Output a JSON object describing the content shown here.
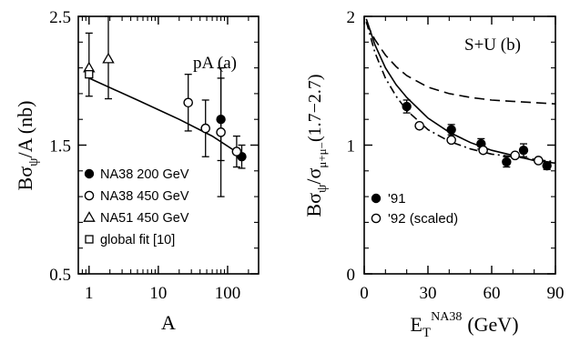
{
  "chart_data": [
    {
      "type": "scatter",
      "panel_label": "pA  (a)",
      "xlabel": "A",
      "ylabel_main": "Bσ",
      "ylabel_sub": "ψ",
      "ylabel_rest": "/A (nb)",
      "x_scale": "log",
      "xlim": [
        0.7,
        280
      ],
      "ylim": [
        0.5,
        2.5
      ],
      "x_ticks": [
        {
          "value": 1,
          "label": "1"
        },
        {
          "value": 10,
          "label": "10"
        },
        {
          "value": 100,
          "label": "100"
        }
      ],
      "y_ticks": [
        {
          "value": 0.5,
          "label": "0.5"
        },
        {
          "value": 1.5,
          "label": "1.5"
        },
        {
          "value": 2.5,
          "label": "2.5"
        }
      ],
      "legend_position": "bottom-left",
      "series": [
        {
          "name": "NA38 200 GeV",
          "marker": "filled-circle",
          "points": [
            {
              "x": 80,
              "y": 1.7,
              "yerr_lo": 0.32,
              "yerr_hi": 0.32
            },
            {
              "x": 160,
              "y": 1.41,
              "yerr_lo": 0.09,
              "yerr_hi": 0.09
            }
          ]
        },
        {
          "name": "NA38 450 GeV",
          "marker": "open-circle",
          "points": [
            {
              "x": 27,
              "y": 1.83,
              "yerr_lo": 0.22,
              "yerr_hi": 0.22
            },
            {
              "x": 48,
              "y": 1.63,
              "yerr_lo": 0.22,
              "yerr_hi": 0.22
            },
            {
              "x": 80,
              "y": 1.6,
              "yerr_lo": 0.5,
              "yerr_hi": 0.5
            },
            {
              "x": 135,
              "y": 1.45,
              "yerr_lo": 0.12,
              "yerr_hi": 0.12
            }
          ]
        },
        {
          "name": "NA51 450 GeV",
          "marker": "open-triangle",
          "points": [
            {
              "x": 1.0,
              "y": 2.1,
              "yerr_lo": 0.22,
              "yerr_hi": 0.27
            },
            {
              "x": 1.9,
              "y": 2.17,
              "yerr_lo": 0.31,
              "yerr_hi": 0.33
            }
          ]
        },
        {
          "name": "global fit [10]",
          "marker": "open-square",
          "points": [
            {
              "x": 1.0,
              "y": 2.05,
              "yerr_lo": 0,
              "yerr_hi": 0
            }
          ]
        }
      ],
      "fit_curve": {
        "x": [
          1,
          5,
          20,
          60,
          160
        ],
        "y": [
          2.02,
          1.85,
          1.7,
          1.57,
          1.42
        ]
      }
    },
    {
      "type": "scatter",
      "panel_label": "S+U  (b)",
      "xlabel_main": "E",
      "xlabel_sub": "T",
      "xlabel_sup": "NA38",
      "xlabel_rest": "(GeV)",
      "ylabel_main": "Bσ",
      "ylabel_sub1": "ψ",
      "ylabel_mid": "/σ",
      "ylabel_sub2": "μ+μ−",
      "ylabel_rest": "(1.7−2.7)",
      "xlim": [
        0,
        90
      ],
      "ylim": [
        0,
        2
      ],
      "x_ticks": [
        {
          "value": 0,
          "label": "0"
        },
        {
          "value": 30,
          "label": "30"
        },
        {
          "value": 60,
          "label": "60"
        },
        {
          "value": 90,
          "label": "90"
        }
      ],
      "y_ticks": [
        {
          "value": 0,
          "label": "0"
        },
        {
          "value": 1,
          "label": "1"
        },
        {
          "value": 2,
          "label": "2"
        }
      ],
      "legend_position": "bottom-left",
      "series": [
        {
          "name": "'91",
          "marker": "filled-circle",
          "points": [
            {
              "x": 20,
              "y": 1.3,
              "yerr_lo": 0.05,
              "yerr_hi": 0.05
            },
            {
              "x": 41,
              "y": 1.12,
              "yerr_lo": 0.04,
              "yerr_hi": 0.04
            },
            {
              "x": 55,
              "y": 1.01,
              "yerr_lo": 0.04,
              "yerr_hi": 0.04
            },
            {
              "x": 67,
              "y": 0.87,
              "yerr_lo": 0.04,
              "yerr_hi": 0.04
            },
            {
              "x": 75,
              "y": 0.96,
              "yerr_lo": 0.05,
              "yerr_hi": 0.05
            },
            {
              "x": 86,
              "y": 0.84,
              "yerr_lo": 0.03,
              "yerr_hi": 0.03
            }
          ]
        },
        {
          "name": "'92 (scaled)",
          "marker": "open-circle",
          "points": [
            {
              "x": 26,
              "y": 1.15,
              "yerr_lo": 0,
              "yerr_hi": 0
            },
            {
              "x": 41,
              "y": 1.04,
              "yerr_lo": 0,
              "yerr_hi": 0
            },
            {
              "x": 56,
              "y": 0.96,
              "yerr_lo": 0,
              "yerr_hi": 0
            },
            {
              "x": 71,
              "y": 0.92,
              "yerr_lo": 0,
              "yerr_hi": 0
            },
            {
              "x": 82,
              "y": 0.88,
              "yerr_lo": 0,
              "yerr_hi": 0
            }
          ]
        }
      ],
      "curves": [
        {
          "style": "dashed",
          "x": [
            1,
            5,
            10,
            15,
            20,
            30,
            40,
            50,
            60,
            70,
            80,
            90
          ],
          "y": [
            1.95,
            1.82,
            1.7,
            1.61,
            1.54,
            1.45,
            1.4,
            1.37,
            1.35,
            1.34,
            1.33,
            1.32
          ]
        },
        {
          "style": "solid",
          "x": [
            1,
            5,
            10,
            15,
            20,
            30,
            40,
            50,
            60,
            70,
            80,
            90
          ],
          "y": [
            1.98,
            1.78,
            1.6,
            1.47,
            1.37,
            1.21,
            1.1,
            1.02,
            0.96,
            0.92,
            0.88,
            0.86
          ]
        },
        {
          "style": "dash-dot",
          "x": [
            1,
            5,
            10,
            15,
            20,
            30,
            40,
            50,
            60,
            70,
            80,
            90
          ],
          "y": [
            1.96,
            1.72,
            1.52,
            1.38,
            1.27,
            1.12,
            1.03,
            0.97,
            0.93,
            0.91,
            0.89,
            0.87
          ]
        }
      ]
    }
  ]
}
